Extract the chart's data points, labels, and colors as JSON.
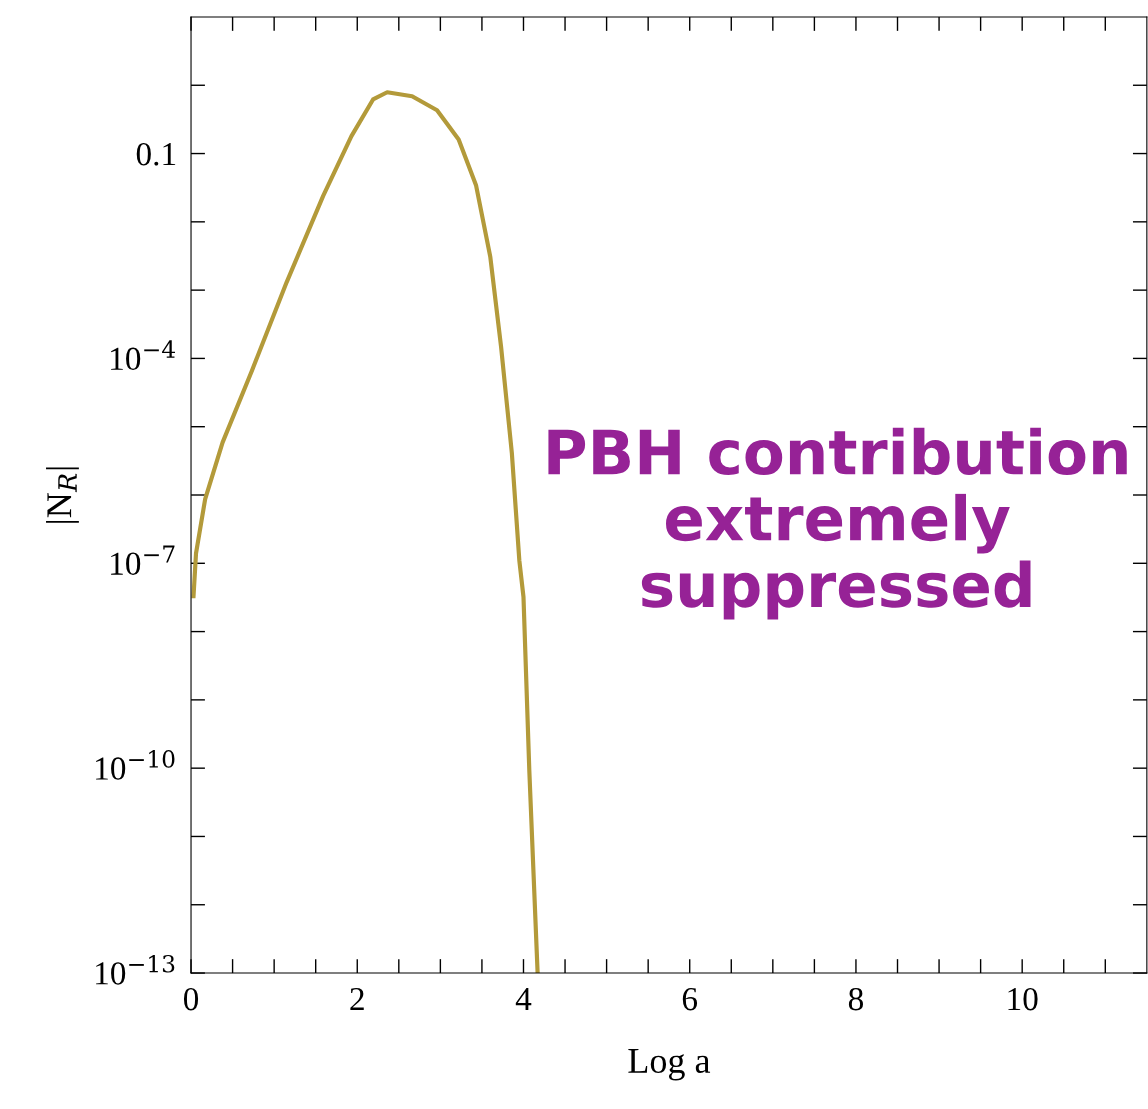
{
  "chart_data": {
    "type": "line",
    "xlabel": "Log a",
    "ylabel": "|N$_{R}$|",
    "annotations": [
      "PBH contribution\nextremely\nsuppressed"
    ],
    "log": "y",
    "grid": false,
    "legend": false,
    "marker": "none",
    "line_style": "solid",
    "xlim": [
      0,
      11.5
    ],
    "ylim": [
      1e-13,
      10
    ],
    "xticks": [
      0,
      {
        "value": 0.5,
        "label": null
      },
      {
        "value": 1,
        "label": null
      },
      {
        "value": 1.5,
        "label": null
      },
      2,
      {
        "value": 2.5,
        "label": null
      },
      {
        "value": 3,
        "label": null
      },
      {
        "value": 3.5,
        "label": null
      },
      4,
      {
        "value": 4.5,
        "label": null
      },
      {
        "value": 5,
        "label": null
      },
      {
        "value": 5.5,
        "label": null
      },
      6,
      {
        "value": 6.5,
        "label": null
      },
      {
        "value": 7,
        "label": null
      },
      {
        "value": 7.5,
        "label": null
      },
      8,
      {
        "value": 8.5,
        "label": null
      },
      {
        "value": 9,
        "label": null
      },
      {
        "value": 9.5,
        "label": null
      },
      10,
      {
        "value": 10.5,
        "label": null
      },
      {
        "value": 11,
        "label": null
      }
    ],
    "yticks": [
      {
        "value": 1e-13,
        "label": "10$^{−13}$"
      },
      {
        "value": 1e-12,
        "label": null
      },
      {
        "value": 1e-11,
        "label": null
      },
      {
        "value": 1e-10,
        "label": "10$^{−10}$"
      },
      {
        "value": 1e-09,
        "label": null
      },
      {
        "value": 1e-08,
        "label": null
      },
      {
        "value": 1e-07,
        "label": "10$^{−7}$"
      },
      {
        "value": 1e-06,
        "label": null
      },
      {
        "value": 1e-05,
        "label": null
      },
      {
        "value": 0.0001,
        "label": "10$^{−4}$"
      },
      {
        "value": 0.001,
        "label": null
      },
      {
        "value": 0.01,
        "label": null
      },
      {
        "value": 0.1,
        "label": "0.1"
      },
      {
        "value": 1,
        "label": null
      }
    ],
    "series": [
      {
        "color": "#b39a3a",
        "x": [
          0.03,
          0.06,
          0.17,
          0.38,
          0.73,
          1.15,
          1.59,
          1.93,
          2.19,
          2.36,
          2.66,
          2.96,
          3.22,
          3.43,
          3.6,
          3.73,
          3.86,
          3.95,
          4.0,
          4.07,
          4.17
        ],
        "values": [
          3.3e-08,
          1.4e-07,
          8.7e-07,
          5.9e-06,
          6.5e-05,
          0.0013,
          0.024,
          0.18,
          0.62,
          0.79,
          0.69,
          0.43,
          0.16,
          0.034,
          0.0031,
          0.00015,
          4.1e-06,
          1.1e-07,
          3.2e-08,
          9.3e-11,
          1e-13
        ]
      }
    ]
  }
}
